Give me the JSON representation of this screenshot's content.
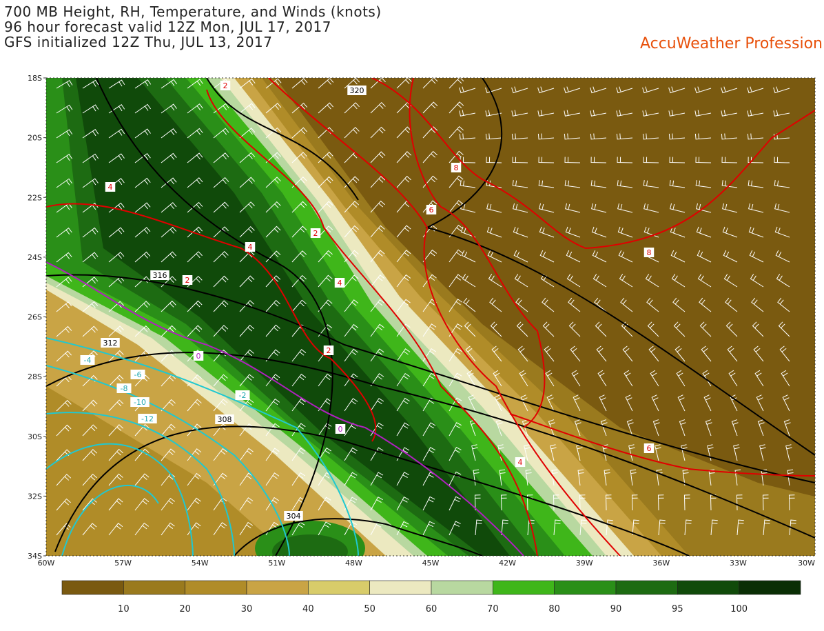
{
  "header": {
    "lines": [
      "700 MB Height, RH, Temperature, and Winds (knots)",
      "96 hour forecast valid 12Z Mon, JUL 17, 2017",
      "GFS initialized 12Z Thu, JUL 13, 2017"
    ],
    "brand": "AccuWeather Profession"
  },
  "map": {
    "lat_labels": [
      "18S",
      "20S",
      "22S",
      "24S",
      "26S",
      "28S",
      "30S",
      "32S",
      "34S"
    ],
    "lon_labels": [
      "60W",
      "57W",
      "54W",
      "51W",
      "48W",
      "45W",
      "42W",
      "39W",
      "36W",
      "33W",
      "30W"
    ],
    "contour_labels": [
      "320",
      "316",
      "312",
      "308",
      "304",
      "2",
      "2",
      "2",
      "2",
      "4",
      "4",
      "4",
      "4",
      "6",
      "6",
      "8",
      "8",
      "0",
      "0",
      "-2",
      "-4",
      "-6",
      "-8",
      "-10",
      "-12"
    ]
  },
  "colorbar": {
    "labels": [
      10,
      20,
      30,
      40,
      50,
      60,
      70,
      80,
      90,
      95,
      100
    ]
  }
}
